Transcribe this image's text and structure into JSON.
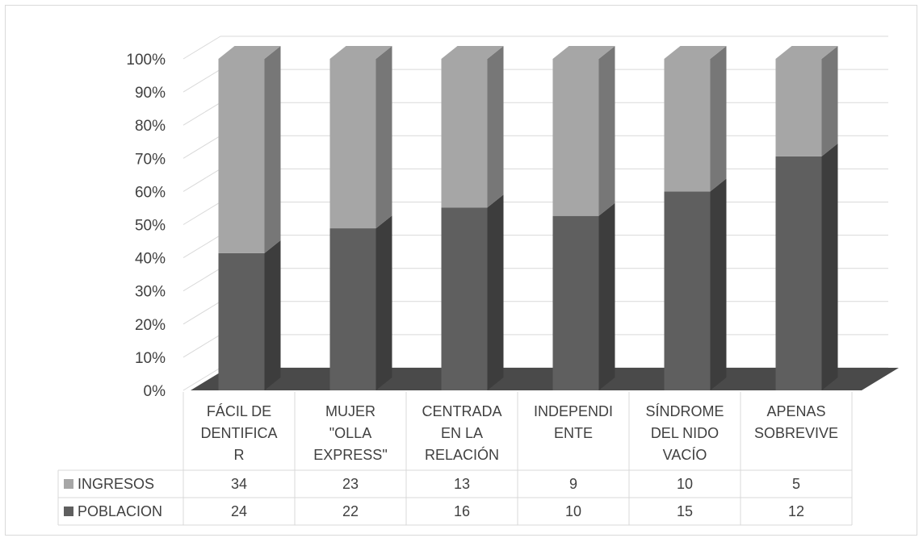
{
  "chart_data": {
    "type": "bar",
    "stacked": true,
    "percent": true,
    "three_d": true,
    "title": "",
    "xlabel": "",
    "ylabel": "",
    "ylim": [
      0,
      100
    ],
    "y_ticks": [
      "0%",
      "10%",
      "20%",
      "30%",
      "40%",
      "50%",
      "60%",
      "70%",
      "80%",
      "90%",
      "100%"
    ],
    "grid": true,
    "legend": "data-table",
    "categories": [
      [
        "FÁCIL DE",
        "DENTIFICA",
        "R"
      ],
      [
        "MUJER",
        "\"OLLA",
        "EXPRESS\""
      ],
      [
        "CENTRADA",
        "EN LA",
        "RELACIÓN"
      ],
      [
        "INDEPENDI",
        "ENTE"
      ],
      [
        "SÍNDROME",
        "DEL NIDO",
        "VACÍO"
      ],
      [
        "APENAS",
        "SOBREVIVE"
      ]
    ],
    "series": [
      {
        "name": "POBLACION",
        "values": [
          24,
          22,
          16,
          10,
          15,
          12
        ],
        "color": "#5f5f5f",
        "side_color": "#3d3d3d"
      },
      {
        "name": "INGRESOS",
        "values": [
          34,
          23,
          13,
          9,
          10,
          5
        ],
        "color": "#a6a6a6",
        "side_color": "#777777"
      }
    ],
    "table_rows": [
      {
        "name": "INGRESOS",
        "values": [
          "34",
          "23",
          "13",
          "9",
          "10",
          "5"
        ],
        "color": "#a6a6a6"
      },
      {
        "name": "POBLACION",
        "values": [
          "24",
          "22",
          "16",
          "10",
          "15",
          "12"
        ],
        "color": "#5f5f5f"
      }
    ],
    "colors": {
      "grid": "#d9d9d9",
      "text": "#404040",
      "floor": "#4a4a4a"
    }
  }
}
